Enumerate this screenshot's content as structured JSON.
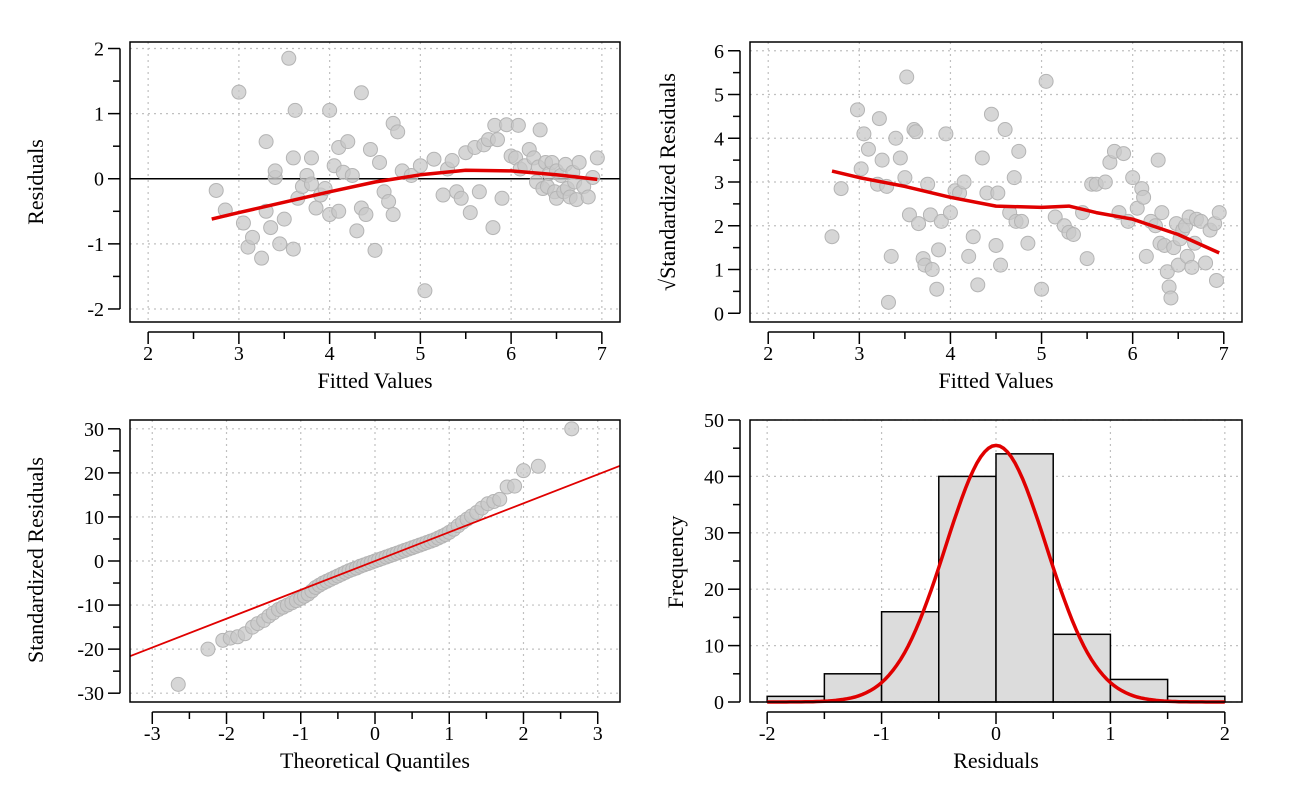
{
  "colors": {
    "point_fill": "#c8c8c8",
    "point_stroke": "#b4b4b4",
    "fit_line": "#e00000",
    "bar_fill": "#dcdcdc",
    "grid": "#c0c0c0",
    "axis": "#000000"
  },
  "chart_data": [
    {
      "type": "scatter",
      "xlabel": "Fitted Values",
      "ylabel": "Residuals",
      "xlim": [
        1.8,
        7.2
      ],
      "ylim": [
        -2.2,
        2.1
      ],
      "xticks": [
        2,
        3,
        4,
        5,
        6,
        7
      ],
      "yticks": [
        -2,
        -1,
        0,
        1,
        2
      ],
      "grid": true,
      "hline": 0,
      "points": [
        [
          2.75,
          -0.18
        ],
        [
          2.85,
          -0.48
        ],
        [
          3.0,
          1.33
        ],
        [
          3.05,
          -0.68
        ],
        [
          3.1,
          -1.05
        ],
        [
          3.15,
          -0.9
        ],
        [
          3.25,
          -1.22
        ],
        [
          3.3,
          -0.5
        ],
        [
          3.3,
          0.57
        ],
        [
          3.35,
          -0.75
        ],
        [
          3.4,
          0.02
        ],
        [
          3.4,
          0.12
        ],
        [
          3.45,
          -1.0
        ],
        [
          3.5,
          -0.62
        ],
        [
          3.55,
          1.85
        ],
        [
          3.6,
          -1.08
        ],
        [
          3.6,
          0.32
        ],
        [
          3.62,
          1.05
        ],
        [
          3.65,
          -0.3
        ],
        [
          3.7,
          -0.12
        ],
        [
          3.75,
          0.05
        ],
        [
          3.8,
          -0.08
        ],
        [
          3.8,
          0.32
        ],
        [
          3.85,
          -0.45
        ],
        [
          3.9,
          -0.25
        ],
        [
          3.95,
          -0.15
        ],
        [
          4.0,
          -0.55
        ],
        [
          4.0,
          1.05
        ],
        [
          4.05,
          0.2
        ],
        [
          4.1,
          0.48
        ],
        [
          4.1,
          -0.5
        ],
        [
          4.15,
          0.1
        ],
        [
          4.2,
          0.57
        ],
        [
          4.25,
          0.05
        ],
        [
          4.3,
          -0.8
        ],
        [
          4.35,
          -0.45
        ],
        [
          4.35,
          1.32
        ],
        [
          4.4,
          -0.55
        ],
        [
          4.45,
          0.45
        ],
        [
          4.5,
          -1.1
        ],
        [
          4.55,
          0.25
        ],
        [
          4.6,
          -0.2
        ],
        [
          4.65,
          -0.35
        ],
        [
          4.7,
          0.85
        ],
        [
          4.7,
          -0.55
        ],
        [
          4.75,
          0.72
        ],
        [
          4.8,
          0.12
        ],
        [
          4.9,
          0.05
        ],
        [
          5.0,
          0.2
        ],
        [
          5.05,
          -1.72
        ],
        [
          5.15,
          0.3
        ],
        [
          5.25,
          -0.25
        ],
        [
          5.3,
          0.15
        ],
        [
          5.35,
          0.28
        ],
        [
          5.4,
          -0.2
        ],
        [
          5.45,
          -0.3
        ],
        [
          5.5,
          0.4
        ],
        [
          5.55,
          -0.52
        ],
        [
          5.6,
          0.48
        ],
        [
          5.65,
          -0.2
        ],
        [
          5.7,
          0.52
        ],
        [
          5.75,
          0.6
        ],
        [
          5.8,
          -0.75
        ],
        [
          5.82,
          0.82
        ],
        [
          5.85,
          0.6
        ],
        [
          5.9,
          -0.3
        ],
        [
          5.95,
          0.83
        ],
        [
          6.0,
          0.35
        ],
        [
          6.05,
          0.32
        ],
        [
          6.08,
          0.82
        ],
        [
          6.1,
          0.15
        ],
        [
          6.15,
          0.2
        ],
        [
          6.2,
          0.45
        ],
        [
          6.25,
          0.32
        ],
        [
          6.28,
          -0.05
        ],
        [
          6.3,
          0.18
        ],
        [
          6.32,
          0.75
        ],
        [
          6.35,
          -0.15
        ],
        [
          6.38,
          0.25
        ],
        [
          6.4,
          -0.12
        ],
        [
          6.42,
          0.08
        ],
        [
          6.45,
          0.25
        ],
        [
          6.48,
          -0.2
        ],
        [
          6.5,
          0.12
        ],
        [
          6.5,
          -0.3
        ],
        [
          6.55,
          0.05
        ],
        [
          6.58,
          -0.2
        ],
        [
          6.6,
          0.22
        ],
        [
          6.62,
          -0.15
        ],
        [
          6.65,
          -0.28
        ],
        [
          6.68,
          0.1
        ],
        [
          6.7,
          -0.05
        ],
        [
          6.72,
          -0.32
        ],
        [
          6.75,
          0.25
        ],
        [
          6.8,
          -0.12
        ],
        [
          6.85,
          -0.28
        ],
        [
          6.9,
          0.02
        ],
        [
          6.95,
          0.32
        ]
      ],
      "smooth": [
        [
          2.7,
          -0.62
        ],
        [
          3.0,
          -0.52
        ],
        [
          3.5,
          -0.36
        ],
        [
          4.0,
          -0.2
        ],
        [
          4.5,
          -0.05
        ],
        [
          5.0,
          0.06
        ],
        [
          5.5,
          0.13
        ],
        [
          6.0,
          0.12
        ],
        [
          6.5,
          0.06
        ],
        [
          6.95,
          -0.01
        ]
      ]
    },
    {
      "type": "scatter",
      "xlabel": "Fitted Values",
      "ylabel": "√Standardized Residuals",
      "xlim": [
        1.8,
        7.2
      ],
      "ylim": [
        -0.2,
        6.2
      ],
      "xticks": [
        2,
        3,
        4,
        5,
        6,
        7
      ],
      "yticks": [
        0,
        1,
        2,
        3,
        4,
        5,
        6
      ],
      "grid": true,
      "points": [
        [
          2.7,
          1.75
        ],
        [
          2.8,
          2.85
        ],
        [
          2.98,
          4.65
        ],
        [
          3.02,
          3.3
        ],
        [
          3.05,
          4.1
        ],
        [
          3.1,
          3.75
        ],
        [
          3.2,
          2.95
        ],
        [
          3.22,
          4.45
        ],
        [
          3.25,
          3.5
        ],
        [
          3.3,
          2.9
        ],
        [
          3.32,
          0.25
        ],
        [
          3.35,
          1.3
        ],
        [
          3.4,
          4.0
        ],
        [
          3.45,
          3.55
        ],
        [
          3.5,
          3.1
        ],
        [
          3.52,
          5.4
        ],
        [
          3.55,
          2.25
        ],
        [
          3.6,
          4.2
        ],
        [
          3.62,
          4.15
        ],
        [
          3.65,
          2.05
        ],
        [
          3.7,
          1.25
        ],
        [
          3.72,
          1.1
        ],
        [
          3.75,
          2.95
        ],
        [
          3.78,
          2.25
        ],
        [
          3.8,
          1.0
        ],
        [
          3.85,
          0.55
        ],
        [
          3.87,
          1.45
        ],
        [
          3.9,
          2.1
        ],
        [
          3.95,
          4.1
        ],
        [
          4.0,
          2.3
        ],
        [
          4.05,
          2.8
        ],
        [
          4.1,
          2.75
        ],
        [
          4.15,
          3.0
        ],
        [
          4.2,
          1.3
        ],
        [
          4.25,
          1.75
        ],
        [
          4.3,
          0.65
        ],
        [
          4.35,
          3.55
        ],
        [
          4.4,
          2.75
        ],
        [
          4.45,
          4.55
        ],
        [
          4.5,
          1.55
        ],
        [
          4.52,
          2.75
        ],
        [
          4.55,
          1.1
        ],
        [
          4.6,
          4.2
        ],
        [
          4.65,
          2.3
        ],
        [
          4.7,
          3.1
        ],
        [
          4.72,
          2.1
        ],
        [
          4.75,
          3.7
        ],
        [
          4.78,
          2.1
        ],
        [
          4.85,
          1.6
        ],
        [
          5.0,
          0.55
        ],
        [
          5.05,
          5.3
        ],
        [
          5.15,
          2.2
        ],
        [
          5.25,
          2.0
        ],
        [
          5.3,
          1.85
        ],
        [
          5.35,
          1.8
        ],
        [
          5.45,
          2.3
        ],
        [
          5.5,
          1.25
        ],
        [
          5.55,
          2.95
        ],
        [
          5.6,
          2.95
        ],
        [
          5.7,
          3.0
        ],
        [
          5.75,
          3.45
        ],
        [
          5.8,
          3.7
        ],
        [
          5.85,
          2.3
        ],
        [
          5.9,
          3.65
        ],
        [
          5.95,
          2.1
        ],
        [
          6.0,
          3.1
        ],
        [
          6.05,
          2.4
        ],
        [
          6.1,
          2.85
        ],
        [
          6.12,
          2.65
        ],
        [
          6.15,
          1.3
        ],
        [
          6.2,
          2.1
        ],
        [
          6.25,
          2.0
        ],
        [
          6.28,
          3.5
        ],
        [
          6.3,
          1.6
        ],
        [
          6.32,
          2.3
        ],
        [
          6.35,
          1.55
        ],
        [
          6.38,
          0.95
        ],
        [
          6.4,
          0.6
        ],
        [
          6.42,
          0.35
        ],
        [
          6.45,
          1.5
        ],
        [
          6.48,
          2.05
        ],
        [
          6.5,
          1.1
        ],
        [
          6.52,
          1.7
        ],
        [
          6.55,
          1.9
        ],
        [
          6.58,
          2.0
        ],
        [
          6.6,
          1.3
        ],
        [
          6.62,
          2.2
        ],
        [
          6.65,
          1.05
        ],
        [
          6.68,
          1.6
        ],
        [
          6.7,
          2.15
        ],
        [
          6.75,
          2.1
        ],
        [
          6.8,
          1.15
        ],
        [
          6.85,
          1.9
        ],
        [
          6.9,
          2.05
        ],
        [
          6.92,
          0.75
        ],
        [
          6.95,
          2.3
        ]
      ],
      "smooth": [
        [
          2.7,
          3.25
        ],
        [
          3.0,
          3.1
        ],
        [
          3.5,
          2.9
        ],
        [
          4.0,
          2.65
        ],
        [
          4.5,
          2.45
        ],
        [
          5.0,
          2.42
        ],
        [
          5.3,
          2.45
        ],
        [
          5.6,
          2.3
        ],
        [
          6.0,
          2.15
        ],
        [
          6.5,
          1.8
        ],
        [
          6.95,
          1.38
        ]
      ]
    },
    {
      "type": "scatter",
      "xlabel": "Theoretical Quantiles",
      "ylabel": "Standardized Residuals",
      "xlim": [
        -3.3,
        3.3
      ],
      "ylim": [
        -32,
        32
      ],
      "xticks": [
        -3,
        -2,
        -1,
        0,
        1,
        2,
        3
      ],
      "yticks": [
        -30,
        -20,
        -10,
        0,
        10,
        20,
        30
      ],
      "grid": true,
      "refline": [
        [
          -3.3,
          -21.6
        ],
        [
          3.3,
          21.6
        ]
      ],
      "points": [
        [
          -2.65,
          -28.0
        ],
        [
          -2.25,
          -20.0
        ],
        [
          -2.05,
          -18.0
        ],
        [
          -1.95,
          -17.5
        ],
        [
          -1.85,
          -17.2
        ],
        [
          -1.75,
          -16.5
        ],
        [
          -1.65,
          -15.0
        ],
        [
          -1.58,
          -14.2
        ],
        [
          -1.5,
          -13.5
        ],
        [
          -1.43,
          -12.5
        ],
        [
          -1.37,
          -11.8
        ],
        [
          -1.3,
          -11.0
        ],
        [
          -1.24,
          -10.5
        ],
        [
          -1.18,
          -10.0
        ],
        [
          -1.12,
          -9.5
        ],
        [
          -1.06,
          -9.0
        ],
        [
          -1.0,
          -8.5
        ],
        [
          -0.95,
          -8.0
        ],
        [
          -0.9,
          -7.5
        ],
        [
          -0.85,
          -6.8
        ],
        [
          -0.8,
          -6.0
        ],
        [
          -0.75,
          -5.5
        ],
        [
          -0.7,
          -5.0
        ],
        [
          -0.65,
          -4.6
        ],
        [
          -0.6,
          -4.2
        ],
        [
          -0.55,
          -3.8
        ],
        [
          -0.5,
          -3.4
        ],
        [
          -0.45,
          -3.0
        ],
        [
          -0.4,
          -2.6
        ],
        [
          -0.35,
          -2.2
        ],
        [
          -0.3,
          -1.9
        ],
        [
          -0.25,
          -1.6
        ],
        [
          -0.2,
          -1.2
        ],
        [
          -0.15,
          -0.9
        ],
        [
          -0.1,
          -0.6
        ],
        [
          -0.05,
          -0.3
        ],
        [
          0.0,
          0.0
        ],
        [
          0.05,
          0.3
        ],
        [
          0.1,
          0.6
        ],
        [
          0.15,
          0.9
        ],
        [
          0.2,
          1.2
        ],
        [
          0.25,
          1.5
        ],
        [
          0.3,
          1.8
        ],
        [
          0.35,
          2.1
        ],
        [
          0.4,
          2.4
        ],
        [
          0.45,
          2.7
        ],
        [
          0.5,
          3.0
        ],
        [
          0.55,
          3.3
        ],
        [
          0.6,
          3.6
        ],
        [
          0.65,
          3.9
        ],
        [
          0.7,
          4.2
        ],
        [
          0.75,
          4.5
        ],
        [
          0.8,
          4.8
        ],
        [
          0.85,
          5.2
        ],
        [
          0.9,
          5.6
        ],
        [
          0.95,
          6.0
        ],
        [
          1.0,
          6.5
        ],
        [
          1.06,
          7.2
        ],
        [
          1.12,
          8.0
        ],
        [
          1.18,
          8.8
        ],
        [
          1.24,
          9.5
        ],
        [
          1.3,
          10.2
        ],
        [
          1.37,
          11.0
        ],
        [
          1.44,
          12.0
        ],
        [
          1.52,
          13.0
        ],
        [
          1.6,
          13.5
        ],
        [
          1.68,
          14.0
        ],
        [
          1.78,
          16.8
        ],
        [
          1.88,
          17.0
        ],
        [
          2.0,
          20.5
        ],
        [
          2.2,
          21.5
        ],
        [
          2.65,
          30.0
        ]
      ]
    },
    {
      "type": "bar",
      "xlabel": "Residuals",
      "ylabel": "Frequency",
      "xlim": [
        -2.15,
        2.15
      ],
      "ylim": [
        0,
        50
      ],
      "xticks": [
        -2,
        -1,
        0,
        1,
        2
      ],
      "yticks": [
        0,
        10,
        20,
        30,
        40,
        50
      ],
      "grid": true,
      "bin_edges": [
        -2.0,
        -1.5,
        -1.0,
        -0.5,
        0.0,
        0.5,
        1.0,
        1.5,
        2.0
      ],
      "values": [
        1,
        5,
        16,
        40,
        44,
        12,
        4,
        1
      ],
      "density_curve": {
        "mean": 0.0,
        "sd": 0.44,
        "peak": 45.5
      }
    }
  ]
}
